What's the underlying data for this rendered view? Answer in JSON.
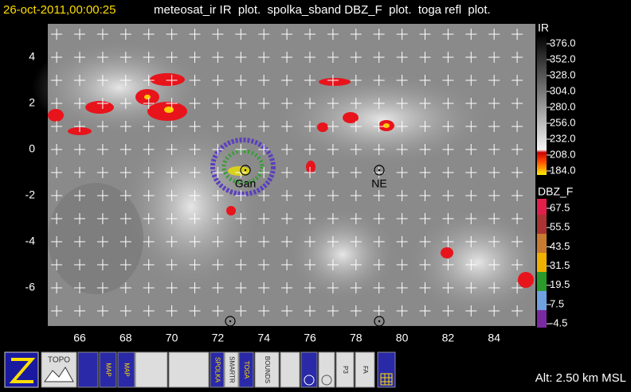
{
  "header": {
    "time": "26-oct-2011,00:00:25",
    "plots": "meteosat_ir IR  plot.  spolka_sband DBZ_F  plot.  toga refl  plot."
  },
  "map": {
    "lon_labels": [
      "66",
      "68",
      "70",
      "72",
      "74",
      "76",
      "78",
      "80",
      "82",
      "84"
    ],
    "lat_labels": [
      "4",
      "2",
      "0",
      "-2",
      "-4",
      "-6"
    ],
    "sites": [
      {
        "label": "Gan"
      },
      {
        "label": "NE"
      }
    ]
  },
  "colorbars": [
    {
      "title": "IR",
      "labels": [
        "376.0",
        "352.0",
        "328.0",
        "304.0",
        "280.0",
        "256.0",
        "232.0",
        "208.0",
        "184.0"
      ]
    },
    {
      "title": "DBZ_F",
      "labels": [
        "67.5",
        "55.5",
        "43.5",
        "31.5",
        "19.5",
        "7.5",
        "-4.5"
      ]
    }
  ],
  "toolbar": {
    "buttons": [
      "TOPO",
      "MAP",
      "MAP",
      "SPOLKA",
      "SMARTR",
      "TOGA",
      "BOUNDS",
      "P3",
      "FA"
    ]
  },
  "status": "Alt: 2.50 km MSL"
}
